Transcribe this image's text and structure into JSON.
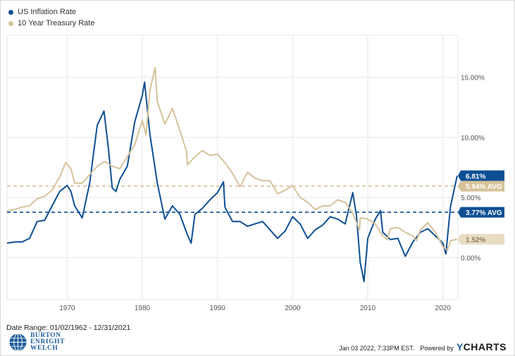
{
  "legend": {
    "items": [
      {
        "label": "US Inflation Rate",
        "color": "#0d4f94"
      },
      {
        "label": "10 Year Treasury Rate",
        "color": "#d6c29b"
      }
    ]
  },
  "footer": {
    "date_range": "Date Range: 01/02/1962 - 12/31/2021",
    "timestamp": "Jan 03 2022, 7:33PM EST.",
    "powered_by": "Powered by",
    "brand_y": "Y",
    "brand_rest": "CHARTS",
    "logo_lines": [
      "BURTON",
      "ENRIGHT",
      "WELCH"
    ]
  },
  "chart_data": {
    "type": "line",
    "xlabel": "",
    "ylabel": "",
    "xlim": [
      1962,
      2022
    ],
    "ylim": [
      -3.5,
      18.5
    ],
    "x_ticks": [
      1970,
      1980,
      1990,
      2000,
      2010,
      2020
    ],
    "y_ticks": [
      {
        "value": 0,
        "label": "0.00%"
      },
      {
        "value": 5,
        "label": "5.00%"
      },
      {
        "value": 10,
        "label": "10.00%"
      },
      {
        "value": 15,
        "label": "15.00%"
      }
    ],
    "grid": true,
    "legend_position": "top-left",
    "series": [
      {
        "name": "US Inflation Rate",
        "color": "#0d4f94",
        "x": [
          1962,
          1963,
          1964,
          1965,
          1966,
          1967,
          1968,
          1969,
          1970,
          1970.5,
          1971,
          1972,
          1973,
          1974,
          1974.9,
          1975.5,
          1976,
          1976.5,
          1977,
          1978,
          1979,
          1980,
          1980.3,
          1981,
          1982,
          1983,
          1984,
          1985,
          1986,
          1986.5,
          1987,
          1988,
          1989,
          1990,
          1990.8,
          1991,
          1992,
          1993,
          1994,
          1995,
          1996,
          1997,
          1998,
          1999,
          2000,
          2001,
          2002,
          2003,
          2004,
          2005,
          2006,
          2007,
          2008,
          2008.5,
          2009,
          2009.5,
          2010,
          2011,
          2011.7,
          2012,
          2013,
          2014,
          2015,
          2016,
          2017,
          2018,
          2019,
          2020,
          2020.4,
          2021,
          2021.9
        ],
        "values": [
          1.2,
          1.3,
          1.3,
          1.6,
          3.0,
          3.1,
          4.3,
          5.5,
          6.0,
          5.5,
          4.3,
          3.3,
          6.2,
          11.0,
          12.2,
          9.0,
          5.8,
          5.5,
          6.5,
          7.6,
          11.3,
          13.5,
          14.6,
          10.3,
          6.2,
          3.2,
          4.3,
          3.6,
          1.9,
          1.2,
          3.6,
          4.1,
          4.8,
          5.4,
          6.3,
          4.2,
          3.0,
          3.0,
          2.6,
          2.8,
          3.0,
          2.3,
          1.6,
          2.2,
          3.4,
          2.8,
          1.6,
          2.3,
          2.7,
          3.4,
          3.2,
          2.8,
          5.4,
          3.5,
          -0.4,
          -2.0,
          1.6,
          3.2,
          3.9,
          2.1,
          1.5,
          1.6,
          0.1,
          1.3,
          2.1,
          2.4,
          1.8,
          1.2,
          0.3,
          4.2,
          6.81
        ]
      },
      {
        "name": "10 Year Treasury Rate",
        "color": "#d6c29b",
        "x": [
          1962,
          1963,
          1964,
          1965,
          1966,
          1967,
          1968,
          1969,
          1969.8,
          1970.5,
          1971,
          1972,
          1973,
          1974,
          1975,
          1976,
          1977,
          1978,
          1979,
          1980,
          1980.5,
          1981,
          1981.7,
          1982,
          1983,
          1984,
          1985,
          1985.9,
          1986,
          1987,
          1988,
          1989,
          1990,
          1991,
          1992,
          1993,
          1994,
          1995,
          1996,
          1997,
          1998,
          1999,
          2000,
          2001,
          2002,
          2003,
          2004,
          2005,
          2006,
          2007,
          2008,
          2008.9,
          2009,
          2010,
          2011,
          2012,
          2012.6,
          2013,
          2014,
          2015,
          2016,
          2016.5,
          2017,
          2018,
          2019,
          2020,
          2020.6,
          2021,
          2021.9
        ],
        "values": [
          3.9,
          4.0,
          4.2,
          4.3,
          4.9,
          5.1,
          5.6,
          6.7,
          7.9,
          7.4,
          6.2,
          6.2,
          6.9,
          7.6,
          8.0,
          7.6,
          7.4,
          8.4,
          9.4,
          11.4,
          10.2,
          13.9,
          15.8,
          13.0,
          11.1,
          12.4,
          10.6,
          8.8,
          7.7,
          8.4,
          8.9,
          8.5,
          8.6,
          7.9,
          7.0,
          5.9,
          7.1,
          6.6,
          6.4,
          6.4,
          5.3,
          5.6,
          6.0,
          5.0,
          4.6,
          4.0,
          4.3,
          4.3,
          4.8,
          4.6,
          3.7,
          2.3,
          3.3,
          3.2,
          2.8,
          1.8,
          1.5,
          2.4,
          2.5,
          2.1,
          1.8,
          1.4,
          2.3,
          2.9,
          2.1,
          0.9,
          0.6,
          1.4,
          1.52
        ]
      }
    ],
    "reference_lines": [
      {
        "series": "10 Year Treasury Rate",
        "value": 5.94,
        "label": "5.94% AVG",
        "color": "#d6c29b",
        "text_color": "#ffffff"
      },
      {
        "series": "US Inflation Rate",
        "value": 3.77,
        "label": "3.77% AVG",
        "color": "#0d4f94",
        "text_color": "#ffffff"
      }
    ],
    "end_labels": [
      {
        "series": "US Inflation Rate",
        "value": 6.81,
        "label": "6.81%",
        "color": "#0d4f94",
        "text_color": "#ffffff"
      },
      {
        "series": "10 Year Treasury Rate",
        "value": 1.52,
        "label": "1.52%",
        "color": "#e8dcc2",
        "text_color": "#8c7a58"
      }
    ]
  }
}
